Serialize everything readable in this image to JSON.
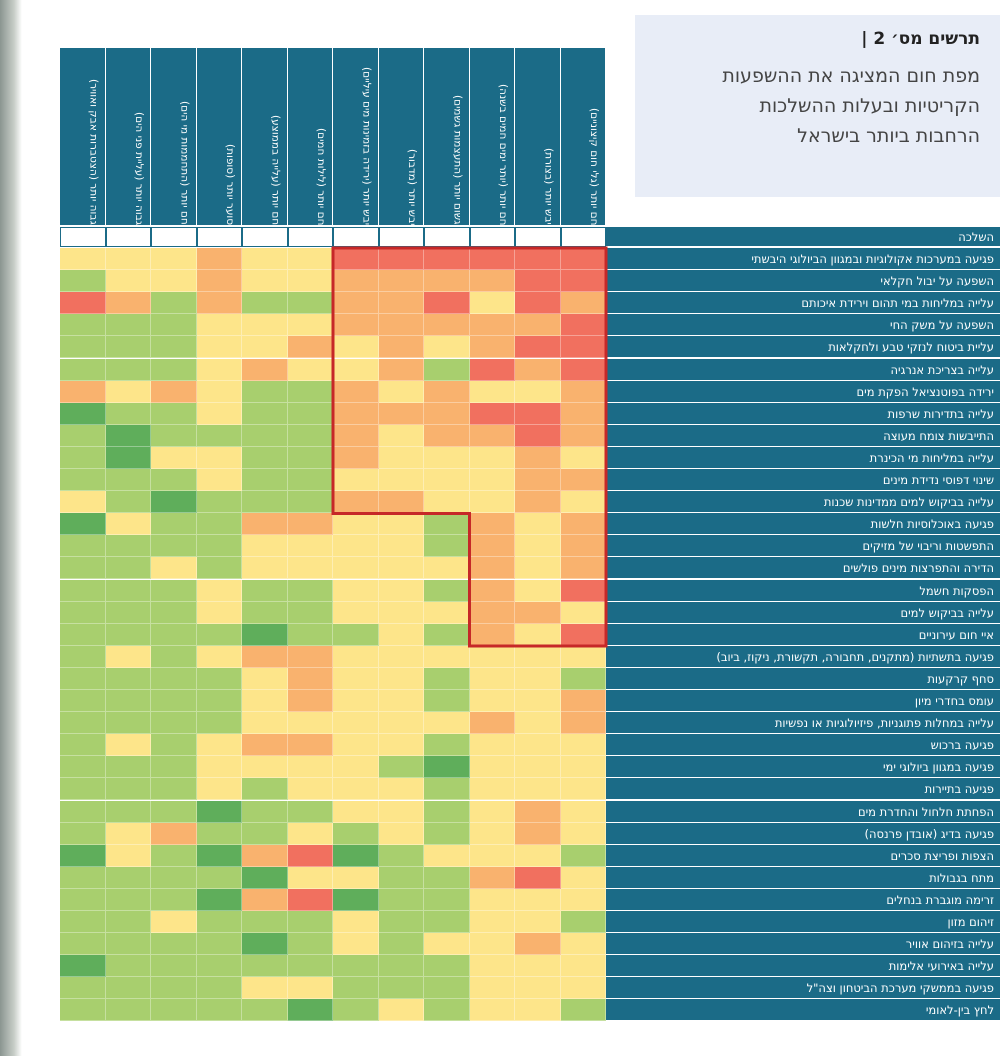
{
  "chart_data": {
    "type": "heatmap",
    "title": "תרשים מס׳ 2 |",
    "subtitle_lines": [
      "מפת חום המציגה את ההשפעות",
      "הקריטיות ובעלות ההשלכות",
      "הרחבות ביותר בישראל"
    ],
    "columns": [
      "חם יותר (גלי חום קיצוניים)",
      "יבש יותר (בצורת)",
      "חם יותר (יותר ימים חמים בשנה)",
      "גשום יותר (התעצמות גשמים)",
      "יבש יותר (מדבור)",
      "יבש יותר (ירידה בזמינות מים עיליים)",
      "חם יותר (לילות חמים)",
      "חם יותר (עלייה בממוצע)",
      "סוער יותר (סופות)",
      "חם יותר (התחממות מי הים)",
      "גבוה יותר (עליית פני הים)",
      "גבוה יותר (הצטברות אבק ואוויר)"
    ],
    "row_header": "השלכה",
    "rows": [
      "פגיעה במערכות אקולוגיות ובמגוון הביולוגי היבשתי",
      "השפעה על יבול חקלאי",
      "עלייה במליחות במי תהום וירידת איכותם",
      "השפעה על משק החי",
      "עליית ביטוח לנזקי טבע ולחקלאות",
      "עלייה בצריכת אנרגיה",
      "ירידה בפוטנציאל הפקת מים",
      "עלייה בתדירות שרפות",
      "התייבשות צומח מעוצה",
      "עלייה במליחות מי הכינרת",
      "שינוי דפוסי נדידת מינים",
      "עלייה בביקוש למים ממדינות שכנות",
      "פגיעה באוכלוסיות חלשות",
      "התפשטות וריבוי של מזיקים",
      "הדירה והתפרצות מינים פולשים",
      "הפסקות חשמל",
      "עלייה בביקוש למים",
      "איי חום עירוניים",
      "פגיעה בתשתיות (מתקנים, תחבורה, תקשורת, ניקוז, ביוב)",
      "סחף קרקעות",
      "עומס בחדרי מיון",
      "עלייה במחלות פתוגניות, פיזיולוגיות או נפשיות",
      "פגיעה ברכוש",
      "פגיעה במגוון ביולוגי ימי",
      "פגיעה בתיירות",
      "הפחתת חלחול והחדרת מים",
      "פגיעה בדיג (אובדן פרנסה)",
      "הצפות ופריצת סכרים",
      "מתח בגבולות",
      "זרימה מוגברת בנחלים",
      "זיהום מזון",
      "עלייה בזיהום אוויר",
      "עלייה באירועי אלימות",
      "פגיעה בממשקי מערכת הביטחון וצה\"ל",
      "לחץ בין-לאומי"
    ],
    "values": [
      [
        5,
        5,
        5,
        5,
        5,
        5,
        3,
        3,
        4,
        3,
        3,
        3
      ],
      [
        5,
        5,
        4,
        4,
        4,
        4,
        3,
        3,
        4,
        3,
        3,
        2
      ],
      [
        4,
        5,
        3,
        5,
        4,
        4,
        2,
        2,
        4,
        2,
        4,
        5
      ],
      [
        5,
        4,
        4,
        4,
        4,
        4,
        3,
        3,
        3,
        2,
        2,
        2
      ],
      [
        5,
        5,
        4,
        3,
        4,
        3,
        4,
        3,
        3,
        2,
        2,
        2
      ],
      [
        5,
        4,
        5,
        2,
        4,
        3,
        3,
        4,
        3,
        2,
        2,
        2
      ],
      [
        4,
        3,
        3,
        4,
        3,
        4,
        2,
        2,
        3,
        4,
        3,
        4
      ],
      [
        4,
        5,
        5,
        4,
        4,
        4,
        2,
        2,
        3,
        2,
        2,
        1
      ],
      [
        4,
        5,
        4,
        4,
        3,
        4,
        2,
        2,
        2,
        2,
        1,
        2
      ],
      [
        3,
        4,
        3,
        3,
        3,
        4,
        2,
        2,
        3,
        3,
        1,
        2
      ],
      [
        4,
        4,
        3,
        3,
        3,
        3,
        2,
        2,
        3,
        2,
        2,
        2
      ],
      [
        3,
        4,
        3,
        3,
        4,
        4,
        2,
        2,
        2,
        1,
        2,
        3
      ],
      [
        4,
        3,
        4,
        2,
        3,
        3,
        4,
        4,
        2,
        2,
        3,
        1
      ],
      [
        4,
        3,
        4,
        2,
        3,
        3,
        3,
        3,
        2,
        2,
        2,
        2
      ],
      [
        4,
        3,
        4,
        3,
        3,
        3,
        3,
        3,
        2,
        3,
        2,
        2
      ],
      [
        5,
        3,
        4,
        2,
        3,
        3,
        2,
        2,
        3,
        2,
        2,
        2
      ],
      [
        3,
        4,
        4,
        3,
        3,
        3,
        2,
        2,
        3,
        2,
        2,
        2
      ],
      [
        5,
        3,
        4,
        2,
        3,
        2,
        2,
        1,
        2,
        2,
        2,
        2
      ],
      [
        3,
        3,
        3,
        3,
        3,
        3,
        4,
        4,
        3,
        2,
        3,
        2
      ],
      [
        2,
        3,
        3,
        2,
        3,
        3,
        4,
        3,
        2,
        2,
        2,
        2
      ],
      [
        4,
        3,
        3,
        2,
        3,
        3,
        4,
        3,
        2,
        2,
        2,
        2
      ],
      [
        4,
        3,
        4,
        3,
        3,
        3,
        3,
        3,
        2,
        2,
        2,
        2
      ],
      [
        3,
        3,
        3,
        2,
        3,
        3,
        4,
        4,
        3,
        2,
        3,
        2
      ],
      [
        3,
        3,
        3,
        1,
        2,
        3,
        3,
        3,
        3,
        2,
        2,
        2
      ],
      [
        3,
        3,
        3,
        2,
        3,
        3,
        3,
        2,
        3,
        2,
        2,
        2
      ],
      [
        3,
        4,
        3,
        2,
        3,
        3,
        2,
        2,
        1,
        2,
        2,
        2
      ],
      [
        3,
        4,
        3,
        2,
        3,
        2,
        3,
        2,
        2,
        4,
        3,
        2
      ],
      [
        2,
        3,
        3,
        3,
        2,
        1,
        5,
        4,
        1,
        2,
        3,
        1
      ],
      [
        3,
        5,
        4,
        2,
        2,
        3,
        3,
        1,
        2,
        2,
        2,
        2
      ],
      [
        3,
        3,
        3,
        2,
        2,
        1,
        5,
        4,
        1,
        2,
        2,
        2
      ],
      [
        2,
        3,
        3,
        2,
        2,
        3,
        2,
        2,
        2,
        3,
        2,
        2
      ],
      [
        3,
        4,
        3,
        3,
        2,
        3,
        2,
        1,
        2,
        2,
        2,
        2
      ],
      [
        3,
        3,
        3,
        2,
        2,
        2,
        2,
        2,
        2,
        2,
        2,
        1
      ],
      [
        3,
        3,
        3,
        2,
        2,
        2,
        3,
        3,
        2,
        2,
        2,
        2
      ],
      [
        2,
        3,
        3,
        2,
        3,
        2,
        1,
        2,
        2,
        2,
        2,
        2
      ]
    ],
    "level_colors": [
      "#5fae5b",
      "#a8cf6e",
      "#fde58a",
      "#f9b26e",
      "#f1705f"
    ]
  }
}
